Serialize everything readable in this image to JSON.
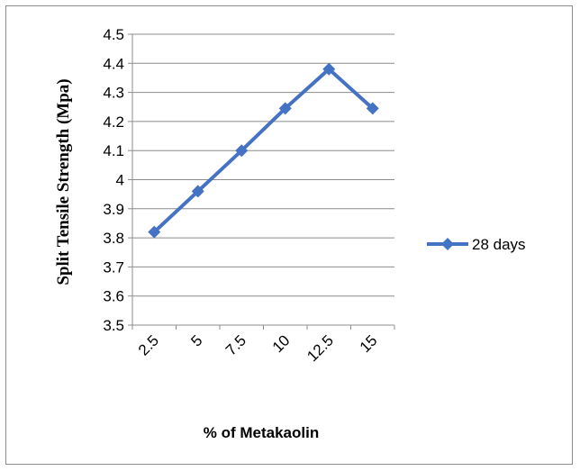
{
  "chart_data": {
    "type": "line",
    "title": "",
    "xlabel": "% of Metakaolin",
    "ylabel": "Split Tensile Strength (Mpa)",
    "categories": [
      "2.5",
      "5",
      "7.5",
      "10",
      "12.5",
      "15"
    ],
    "series": [
      {
        "name": "28 days",
        "values": [
          3.82,
          3.96,
          4.1,
          4.245,
          4.38,
          4.245
        ],
        "color": "#4472C4",
        "marker": "diamond"
      }
    ],
    "ylim": [
      3.5,
      4.5
    ],
    "yticks": [
      "3.5",
      "3.6",
      "3.7",
      "3.8",
      "3.9",
      "4",
      "4.1",
      "4.2",
      "4.3",
      "4.4",
      "4.5"
    ],
    "grid": true,
    "legend_position": "right"
  }
}
